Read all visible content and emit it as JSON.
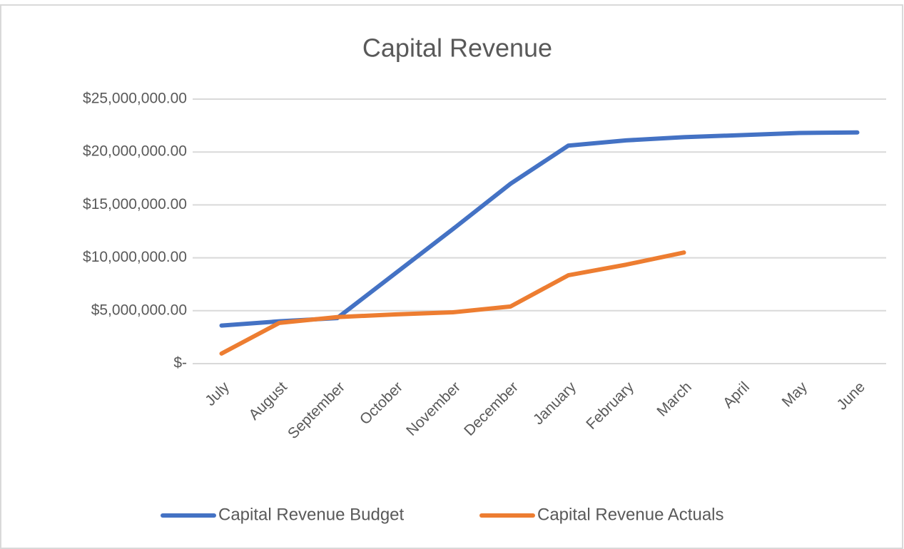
{
  "chart_data": {
    "type": "line",
    "title": "Capital Revenue",
    "categories": [
      "July",
      "August",
      "September",
      "October",
      "November",
      "December",
      "January",
      "February",
      "March",
      "April",
      "May",
      "June"
    ],
    "series": [
      {
        "name": "Capital Revenue Budget",
        "color": "#4472c4",
        "values": [
          3600000,
          4000000,
          4300000,
          8500000,
          12700000,
          17000000,
          20600000,
          21100000,
          21400000,
          21600000,
          21800000,
          21850000
        ]
      },
      {
        "name": "Capital Revenue Actuals",
        "color": "#ed7d31",
        "values": [
          950000,
          3850000,
          4400000,
          4650000,
          4850000,
          5400000,
          8350000,
          9350000,
          10500000,
          null,
          null,
          null
        ]
      }
    ],
    "ylim": [
      0,
      25000000
    ],
    "yticks": [
      {
        "value": 0,
        "label": "$-"
      },
      {
        "value": 5000000,
        "label": "$5,000,000.00"
      },
      {
        "value": 10000000,
        "label": "$10,000,000.00"
      },
      {
        "value": 15000000,
        "label": "$15,000,000.00"
      },
      {
        "value": 20000000,
        "label": "$20,000,000.00"
      },
      {
        "value": 25000000,
        "label": "$25,000,000.00"
      }
    ],
    "grid": true,
    "legend": "bottom"
  }
}
